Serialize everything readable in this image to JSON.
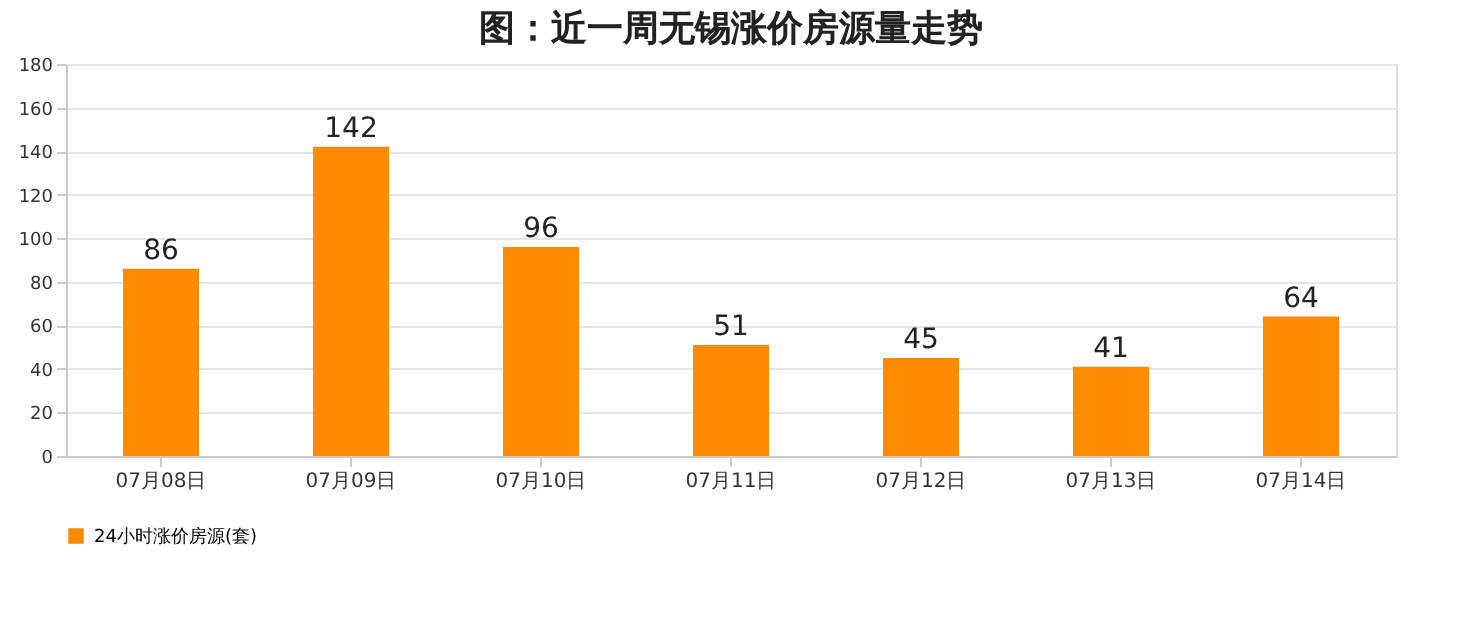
{
  "chart_data": {
    "type": "bar",
    "title": "图：近一周无锡涨价房源量走势",
    "categories": [
      "07月08日",
      "07月09日",
      "07月10日",
      "07月11日",
      "07月12日",
      "07月13日",
      "07月14日"
    ],
    "series": [
      {
        "name": "24小时涨价房源(套)",
        "color": "#ff8c00",
        "values": [
          86,
          142,
          96,
          51,
          45,
          41,
          64
        ]
      }
    ],
    "ylim": [
      0,
      180
    ],
    "yticks": [
      0,
      20,
      40,
      60,
      80,
      100,
      120,
      140,
      160,
      180
    ],
    "grid": "y",
    "legend": "bottom",
    "data_labels": true
  }
}
